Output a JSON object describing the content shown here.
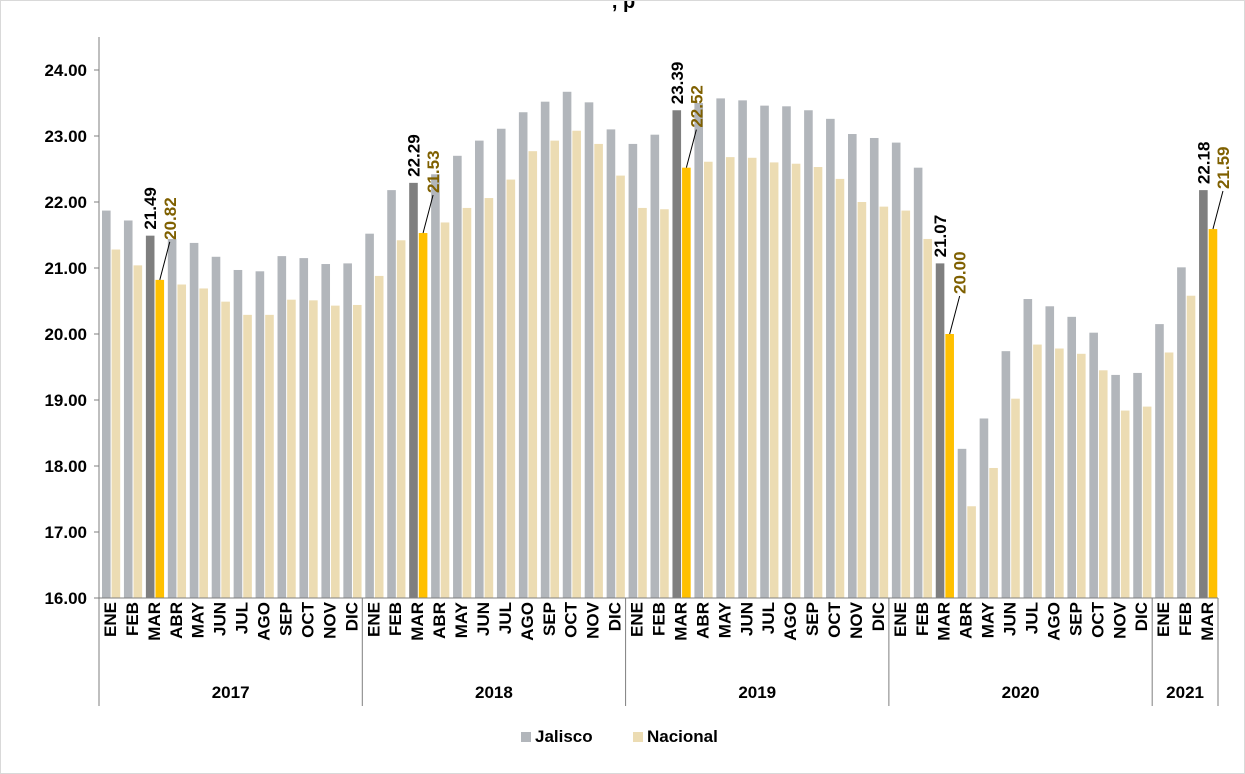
{
  "chart_data": {
    "type": "bar",
    "title": ", p",
    "ylim": [
      16,
      24.5
    ],
    "yticks": [
      "16.00",
      "17.00",
      "18.00",
      "19.00",
      "20.00",
      "21.00",
      "22.00",
      "23.00",
      "24.00"
    ],
    "grid": false,
    "legend_position": "bottom",
    "years": [
      {
        "label": "2017",
        "count": 12
      },
      {
        "label": "2018",
        "count": 12
      },
      {
        "label": "2019",
        "count": 12
      },
      {
        "label": "2020",
        "count": 12
      },
      {
        "label": "2021",
        "count": 3
      }
    ],
    "categories": [
      "ENE",
      "FEB",
      "MAR",
      "ABR",
      "MAY",
      "JUN",
      "JUL",
      "AGO",
      "SEP",
      "OCT",
      "NOV",
      "DIC",
      "ENE",
      "FEB",
      "MAR",
      "ABR",
      "MAY",
      "JUN",
      "JUL",
      "AGO",
      "SEP",
      "OCT",
      "NOV",
      "DIC",
      "ENE",
      "FEB",
      "MAR",
      "ABR",
      "MAY",
      "JUN",
      "JUL",
      "AGO",
      "SEP",
      "OCT",
      "NOV",
      "DIC",
      "ENE",
      "FEB",
      "MAR",
      "ABR",
      "MAY",
      "JUN",
      "JUL",
      "AGO",
      "SEP",
      "OCT",
      "NOV",
      "DIC",
      "ENE",
      "FEB",
      "MAR"
    ],
    "series": [
      {
        "name": "Jalisco",
        "color": "#b2b6bb",
        "highlight_color": "#7f7f7f",
        "values": [
          21.87,
          21.72,
          21.49,
          21.44,
          21.38,
          21.17,
          20.97,
          20.95,
          21.18,
          21.15,
          21.06,
          21.07,
          21.52,
          22.18,
          22.29,
          22.42,
          22.7,
          22.93,
          23.11,
          23.36,
          23.52,
          23.67,
          23.51,
          23.1,
          22.88,
          23.02,
          23.39,
          23.5,
          23.57,
          23.54,
          23.46,
          23.45,
          23.39,
          23.26,
          23.03,
          22.97,
          22.9,
          22.52,
          21.07,
          18.26,
          18.72,
          19.74,
          20.53,
          20.42,
          20.26,
          20.02,
          19.38,
          19.41,
          20.15,
          21.01,
          22.18
        ]
      },
      {
        "name": "Nacional",
        "color": "#ecdcb3",
        "highlight_color": "#ffc000",
        "values": [
          21.28,
          21.04,
          20.82,
          20.75,
          20.69,
          20.49,
          20.29,
          20.29,
          20.52,
          20.51,
          20.43,
          20.44,
          20.88,
          21.42,
          21.53,
          21.69,
          21.91,
          22.06,
          22.34,
          22.77,
          22.93,
          23.08,
          22.88,
          22.4,
          21.91,
          21.89,
          22.52,
          22.61,
          22.68,
          22.67,
          22.6,
          22.58,
          22.53,
          22.35,
          22.0,
          21.93,
          21.87,
          21.44,
          20.0,
          17.39,
          17.97,
          19.02,
          19.84,
          19.78,
          19.7,
          19.45,
          18.84,
          18.9,
          19.72,
          20.58,
          21.59
        ]
      }
    ],
    "highlight_indices": [
      2,
      14,
      26,
      38,
      50
    ],
    "data_labels": [
      {
        "index": 2,
        "jalisco": "21.49",
        "nacional": "20.82"
      },
      {
        "index": 14,
        "jalisco": "22.29",
        "nacional": "21.53"
      },
      {
        "index": 26,
        "jalisco": "23.39",
        "nacional": "22.52"
      },
      {
        "index": 38,
        "jalisco": "21.07",
        "nacional": "20.00"
      },
      {
        "index": 50,
        "jalisco": "22.18",
        "nacional": "21.59"
      }
    ],
    "label_colors": {
      "jalisco": "#000000",
      "nacional": "#7f6000"
    }
  }
}
